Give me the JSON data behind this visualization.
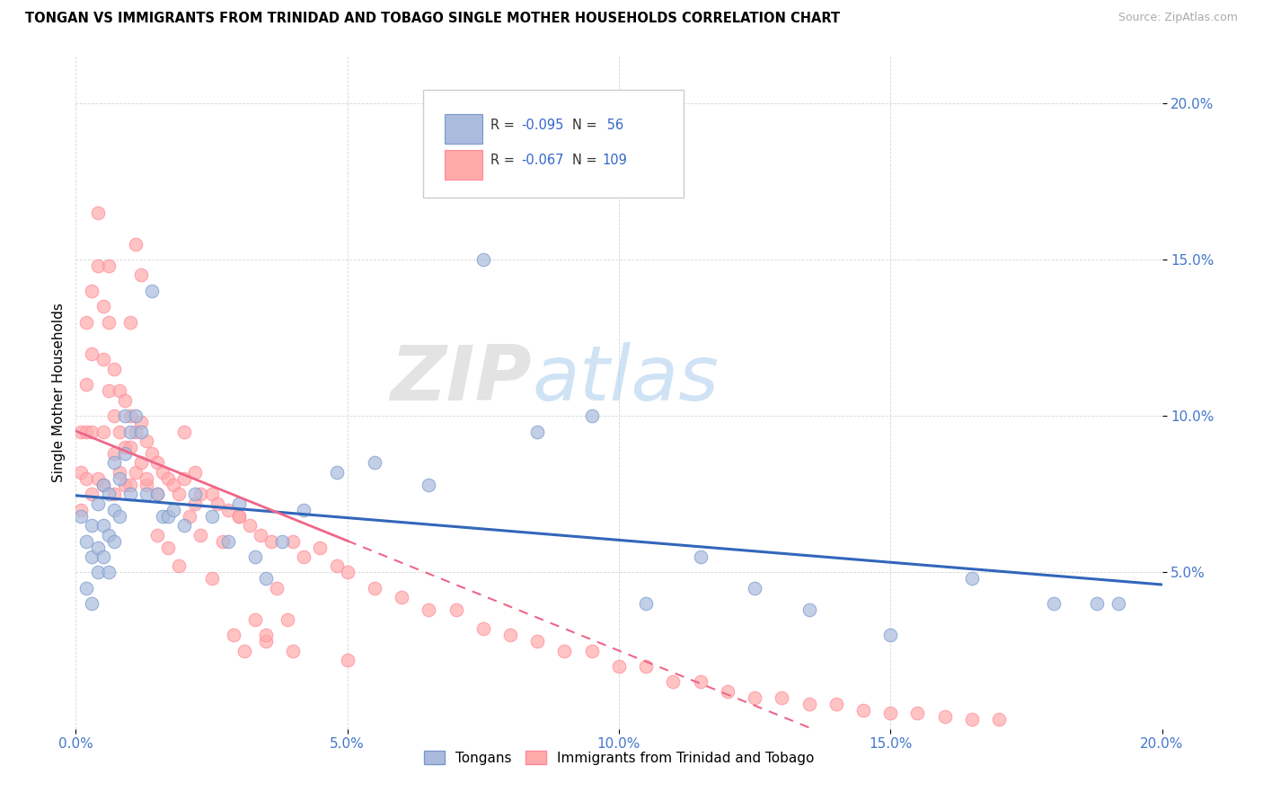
{
  "title": "TONGAN VS IMMIGRANTS FROM TRINIDAD AND TOBAGO SINGLE MOTHER HOUSEHOLDS CORRELATION CHART",
  "source": "Source: ZipAtlas.com",
  "ylabel": "Single Mother Households",
  "legend_labels": [
    "Tongans",
    "Immigrants from Trinidad and Tobago"
  ],
  "blue_color": "#AABBDD",
  "pink_color": "#FFAAAA",
  "blue_edge_color": "#7799CC",
  "pink_edge_color": "#FF8899",
  "blue_line_color": "#3366BB",
  "pink_line_color": "#EE6688",
  "r_blue": "-0.095",
  "n_blue": "56",
  "r_pink": "-0.067",
  "n_pink": "109",
  "watermark_zip": "ZIP",
  "watermark_atlas": "atlas",
  "xlim": [
    0.0,
    0.2
  ],
  "ylim": [
    0.0,
    0.215
  ],
  "yticks": [
    0.05,
    0.1,
    0.15,
    0.2
  ],
  "xticks": [
    0.0,
    0.05,
    0.1,
    0.15,
    0.2
  ],
  "blue_scatter_x": [
    0.001,
    0.002,
    0.002,
    0.003,
    0.003,
    0.003,
    0.004,
    0.004,
    0.004,
    0.005,
    0.005,
    0.005,
    0.006,
    0.006,
    0.006,
    0.007,
    0.007,
    0.007,
    0.008,
    0.008,
    0.009,
    0.009,
    0.01,
    0.01,
    0.011,
    0.012,
    0.013,
    0.014,
    0.015,
    0.016,
    0.017,
    0.018,
    0.02,
    0.022,
    0.025,
    0.028,
    0.03,
    0.033,
    0.035,
    0.038,
    0.042,
    0.048,
    0.055,
    0.065,
    0.075,
    0.085,
    0.095,
    0.105,
    0.115,
    0.125,
    0.135,
    0.15,
    0.165,
    0.18,
    0.188,
    0.192
  ],
  "blue_scatter_y": [
    0.068,
    0.06,
    0.045,
    0.065,
    0.055,
    0.04,
    0.072,
    0.058,
    0.05,
    0.078,
    0.065,
    0.055,
    0.075,
    0.062,
    0.05,
    0.085,
    0.07,
    0.06,
    0.08,
    0.068,
    0.1,
    0.088,
    0.095,
    0.075,
    0.1,
    0.095,
    0.075,
    0.14,
    0.075,
    0.068,
    0.068,
    0.07,
    0.065,
    0.075,
    0.068,
    0.06,
    0.072,
    0.055,
    0.048,
    0.06,
    0.07,
    0.082,
    0.085,
    0.078,
    0.15,
    0.095,
    0.1,
    0.04,
    0.055,
    0.045,
    0.038,
    0.03,
    0.048,
    0.04,
    0.04,
    0.04
  ],
  "pink_scatter_x": [
    0.001,
    0.001,
    0.001,
    0.002,
    0.002,
    0.002,
    0.002,
    0.003,
    0.003,
    0.003,
    0.003,
    0.004,
    0.004,
    0.004,
    0.005,
    0.005,
    0.005,
    0.005,
    0.006,
    0.006,
    0.006,
    0.007,
    0.007,
    0.007,
    0.007,
    0.008,
    0.008,
    0.008,
    0.009,
    0.009,
    0.009,
    0.01,
    0.01,
    0.01,
    0.011,
    0.011,
    0.012,
    0.012,
    0.013,
    0.013,
    0.014,
    0.015,
    0.015,
    0.016,
    0.017,
    0.018,
    0.019,
    0.02,
    0.022,
    0.023,
    0.025,
    0.026,
    0.028,
    0.03,
    0.032,
    0.034,
    0.036,
    0.04,
    0.042,
    0.045,
    0.048,
    0.05,
    0.055,
    0.06,
    0.065,
    0.07,
    0.075,
    0.08,
    0.085,
    0.09,
    0.095,
    0.1,
    0.105,
    0.11,
    0.115,
    0.12,
    0.125,
    0.13,
    0.135,
    0.14,
    0.145,
    0.15,
    0.155,
    0.16,
    0.165,
    0.17,
    0.013,
    0.015,
    0.017,
    0.019,
    0.021,
    0.023,
    0.025,
    0.027,
    0.029,
    0.031,
    0.033,
    0.035,
    0.037,
    0.039,
    0.01,
    0.011,
    0.012,
    0.02,
    0.022,
    0.03,
    0.035,
    0.04,
    0.05
  ],
  "pink_scatter_y": [
    0.095,
    0.082,
    0.07,
    0.13,
    0.11,
    0.095,
    0.08,
    0.14,
    0.12,
    0.095,
    0.075,
    0.165,
    0.148,
    0.08,
    0.135,
    0.118,
    0.095,
    0.078,
    0.148,
    0.13,
    0.108,
    0.115,
    0.1,
    0.088,
    0.075,
    0.108,
    0.095,
    0.082,
    0.105,
    0.09,
    0.078,
    0.1,
    0.09,
    0.078,
    0.095,
    0.082,
    0.098,
    0.085,
    0.092,
    0.078,
    0.088,
    0.085,
    0.075,
    0.082,
    0.08,
    0.078,
    0.075,
    0.095,
    0.082,
    0.075,
    0.075,
    0.072,
    0.07,
    0.068,
    0.065,
    0.062,
    0.06,
    0.06,
    0.055,
    0.058,
    0.052,
    0.05,
    0.045,
    0.042,
    0.038,
    0.038,
    0.032,
    0.03,
    0.028,
    0.025,
    0.025,
    0.02,
    0.02,
    0.015,
    0.015,
    0.012,
    0.01,
    0.01,
    0.008,
    0.008,
    0.006,
    0.005,
    0.005,
    0.004,
    0.003,
    0.003,
    0.08,
    0.062,
    0.058,
    0.052,
    0.068,
    0.062,
    0.048,
    0.06,
    0.03,
    0.025,
    0.035,
    0.028,
    0.045,
    0.035,
    0.13,
    0.155,
    0.145,
    0.08,
    0.072,
    0.068,
    0.03,
    0.025,
    0.022
  ]
}
